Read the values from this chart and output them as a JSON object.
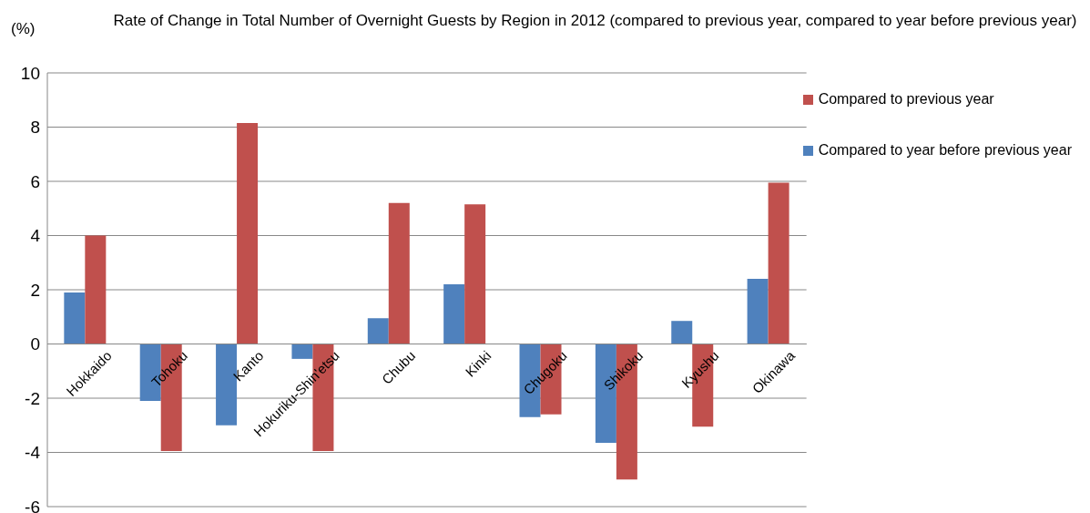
{
  "chart_data": {
    "type": "bar",
    "title": "Rate of Change in Total Number of Overnight Guests by Region in 2012 (compared to previous year, compared to year before previous year)",
    "ylabel": "(%)",
    "categories": [
      "Hokkaido",
      "Tohoku",
      "Kanto",
      "Hokuriku-Shin'etsu",
      "Chubu",
      "Kinki",
      "Chugoku",
      "Shikoku",
      "Kyushu",
      "Okinawa"
    ],
    "series": [
      {
        "name": "Compared to year before previous year",
        "color": "#4f81bd",
        "values": [
          1.9,
          -2.1,
          -3.0,
          -0.55,
          0.95,
          2.2,
          -2.7,
          -3.65,
          0.85,
          2.4
        ]
      },
      {
        "name": "Compared to previous year",
        "color": "#c0504d",
        "values": [
          4.0,
          -3.95,
          8.15,
          -3.95,
          5.2,
          5.15,
          -2.6,
          -5.0,
          -3.05,
          5.95
        ]
      }
    ],
    "ylim": [
      -6,
      10
    ],
    "yticks": [
      -6,
      -4,
      -2,
      0,
      2,
      4,
      6,
      8,
      10
    ],
    "grid": "y",
    "legend": "top right"
  }
}
